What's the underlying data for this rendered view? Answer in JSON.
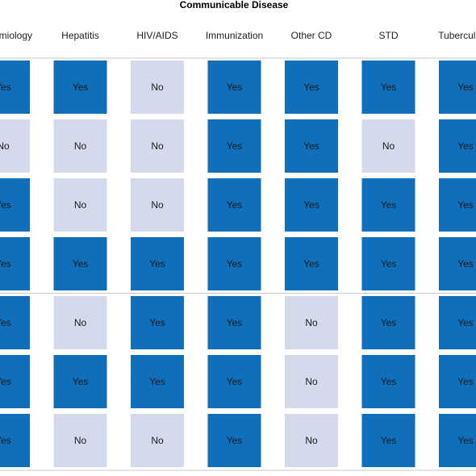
{
  "chart_data": {
    "type": "table",
    "title": "Communicable Disease",
    "columns": [
      "Epidemiology",
      "Hepatitis",
      "HIV/AIDS",
      "Immunization",
      "Other CD",
      "STD",
      "Tuberculosis"
    ],
    "rows": [
      [
        "Yes",
        "Yes",
        "No",
        "Yes",
        "Yes",
        "Yes",
        "Yes"
      ],
      [
        "No",
        "No",
        "No",
        "Yes",
        "Yes",
        "No",
        "Yes"
      ],
      [
        "Yes",
        "No",
        "No",
        "Yes",
        "Yes",
        "Yes",
        "Yes"
      ],
      [
        "Yes",
        "Yes",
        "Yes",
        "Yes",
        "Yes",
        "Yes",
        "Yes"
      ],
      [
        "Yes",
        "No",
        "Yes",
        "Yes",
        "No",
        "Yes",
        "Yes"
      ],
      [
        "Yes",
        "Yes",
        "Yes",
        "Yes",
        "No",
        "Yes",
        "Yes"
      ],
      [
        "Yes",
        "No",
        "No",
        "Yes",
        "No",
        "Yes",
        "Yes"
      ]
    ],
    "colors": {
      "yes_fill": "#0f6fba",
      "no_fill": "#d5d9ec",
      "yes_text": "#1a1a1a",
      "no_text": "#1a1a1a",
      "separator": "#c8c8c8"
    }
  }
}
